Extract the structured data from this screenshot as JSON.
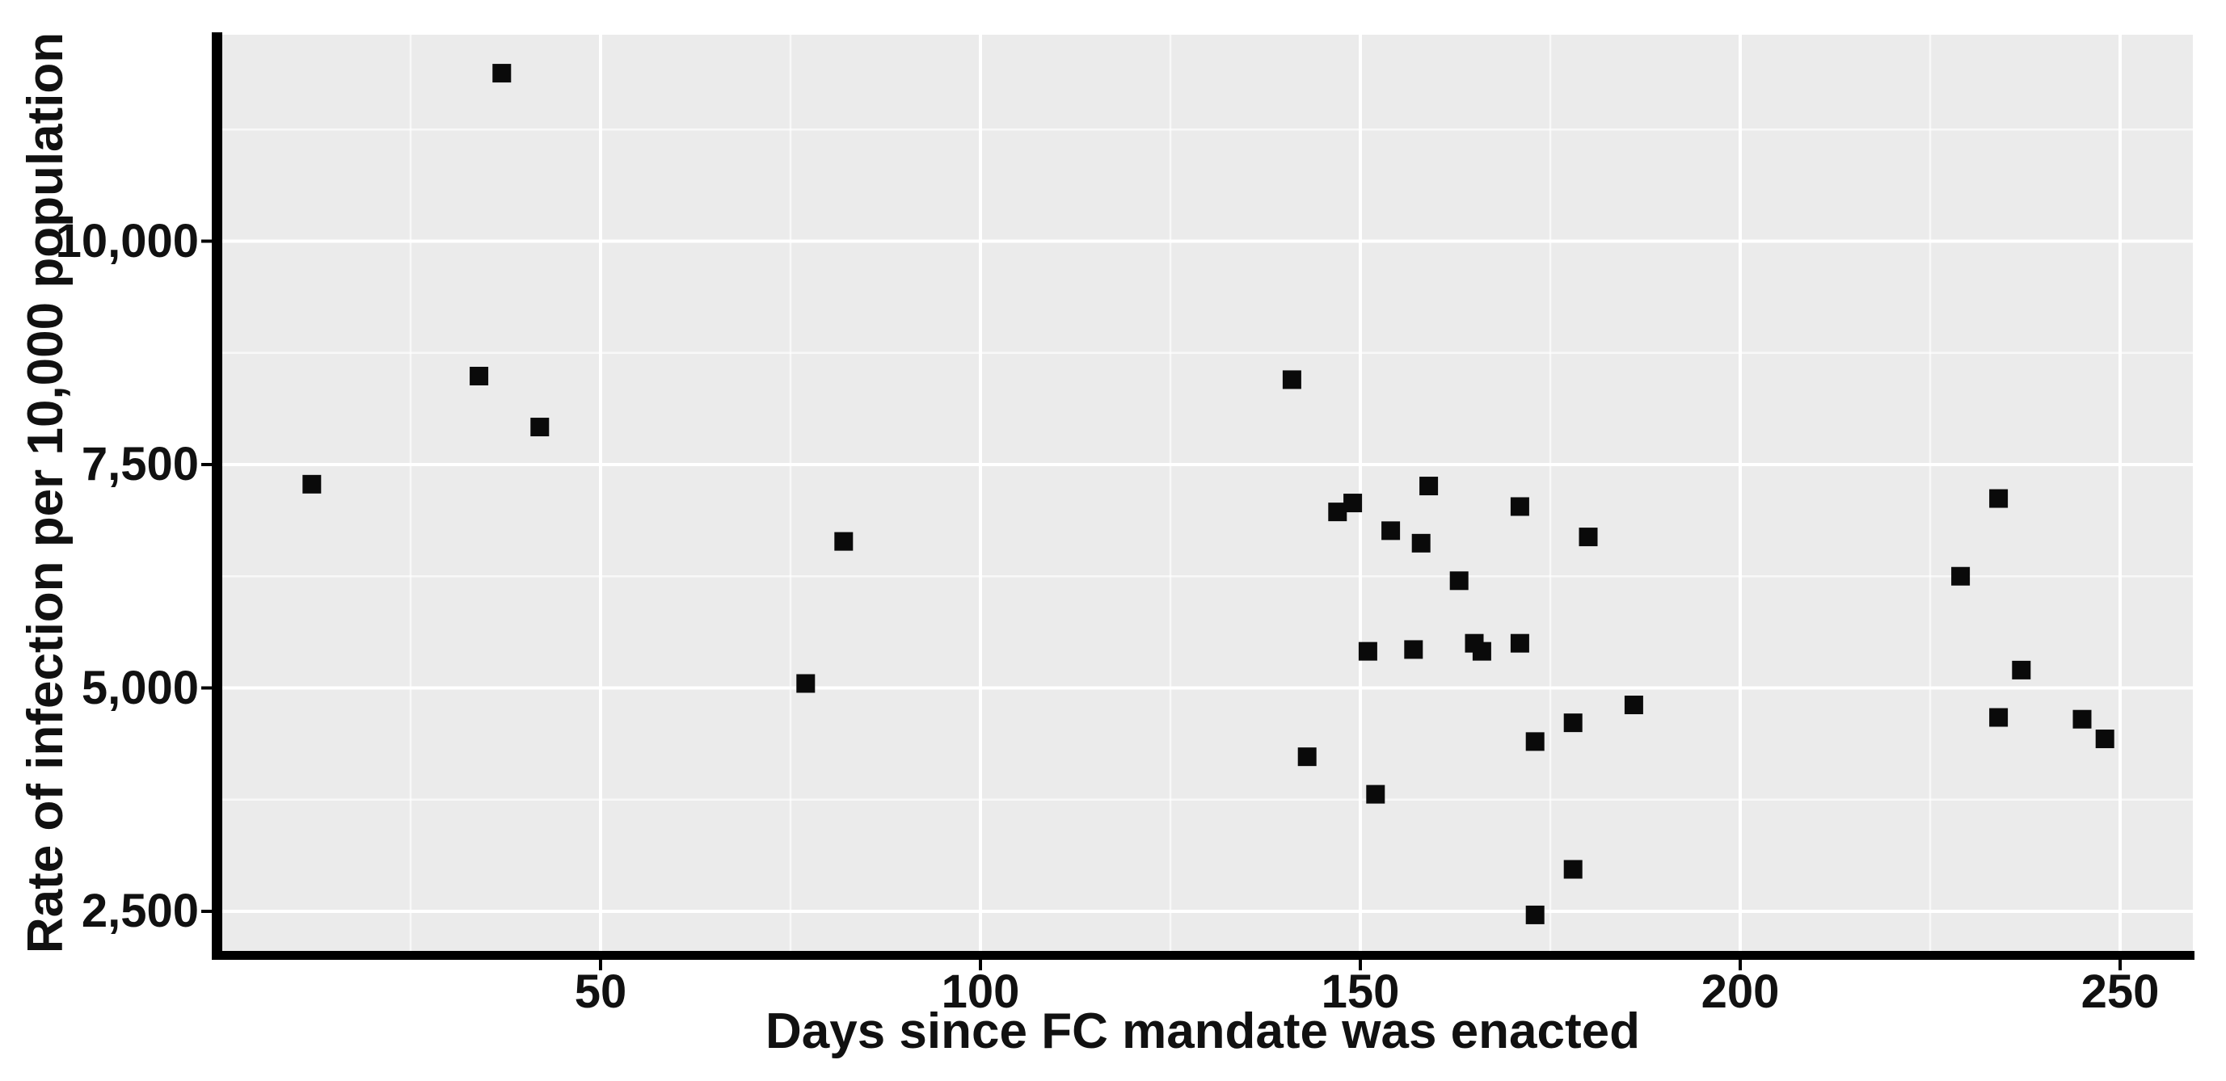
{
  "chart_data": {
    "type": "scatter",
    "title": "",
    "xlabel": "Days since FC mandate was enacted",
    "ylabel": "Rate of infection per 10,000 population",
    "legend": "none",
    "grid": "major and minor, white on gray panel",
    "marker": "filled black square",
    "xlim": [
      -1,
      260
    ],
    "ylim": [
      2050,
      12320
    ],
    "x_major_ticks": [
      50,
      100,
      150,
      200,
      250
    ],
    "x_tick_labels": [
      "50",
      "100",
      "150",
      "200",
      "250"
    ],
    "x_minor_ticks": [
      25,
      75,
      125,
      175,
      225
    ],
    "y_major_ticks": [
      2500,
      5000,
      7500,
      10000
    ],
    "y_tick_labels": [
      "2,500",
      "5,000",
      "7,500",
      "10,000"
    ],
    "y_minor_ticks": [
      3750,
      6250,
      8750,
      11250
    ],
    "colors": {
      "page_bg": "#ffffff",
      "panel_bg": "#ebebeb",
      "major_gridline": "#ffffff",
      "minor_gridline": "#ffffff",
      "axis_line": "#000000",
      "point": "#0a0a0a",
      "text": "#111111"
    },
    "points": [
      {
        "x": 12,
        "y": 7280
      },
      {
        "x": 34,
        "y": 8490
      },
      {
        "x": 37,
        "y": 11880
      },
      {
        "x": 42,
        "y": 7920
      },
      {
        "x": 77,
        "y": 5050
      },
      {
        "x": 82,
        "y": 6640
      },
      {
        "x": 141,
        "y": 8450
      },
      {
        "x": 143,
        "y": 4230
      },
      {
        "x": 147,
        "y": 6970
      },
      {
        "x": 149,
        "y": 7070
      },
      {
        "x": 151,
        "y": 5410
      },
      {
        "x": 152,
        "y": 3810
      },
      {
        "x": 154,
        "y": 6760
      },
      {
        "x": 157,
        "y": 5430
      },
      {
        "x": 158,
        "y": 6620
      },
      {
        "x": 159,
        "y": 7260
      },
      {
        "x": 163,
        "y": 6200
      },
      {
        "x": 165,
        "y": 5500
      },
      {
        "x": 166,
        "y": 5410
      },
      {
        "x": 171,
        "y": 7030
      },
      {
        "x": 171,
        "y": 5500
      },
      {
        "x": 173,
        "y": 4400
      },
      {
        "x": 173,
        "y": 2460
      },
      {
        "x": 178,
        "y": 4610
      },
      {
        "x": 178,
        "y": 2970
      },
      {
        "x": 180,
        "y": 6690
      },
      {
        "x": 186,
        "y": 4810
      },
      {
        "x": 229,
        "y": 6250
      },
      {
        "x": 234,
        "y": 7120
      },
      {
        "x": 234,
        "y": 4670
      },
      {
        "x": 237,
        "y": 5200
      },
      {
        "x": 245,
        "y": 4650
      },
      {
        "x": 248,
        "y": 4430
      }
    ]
  }
}
